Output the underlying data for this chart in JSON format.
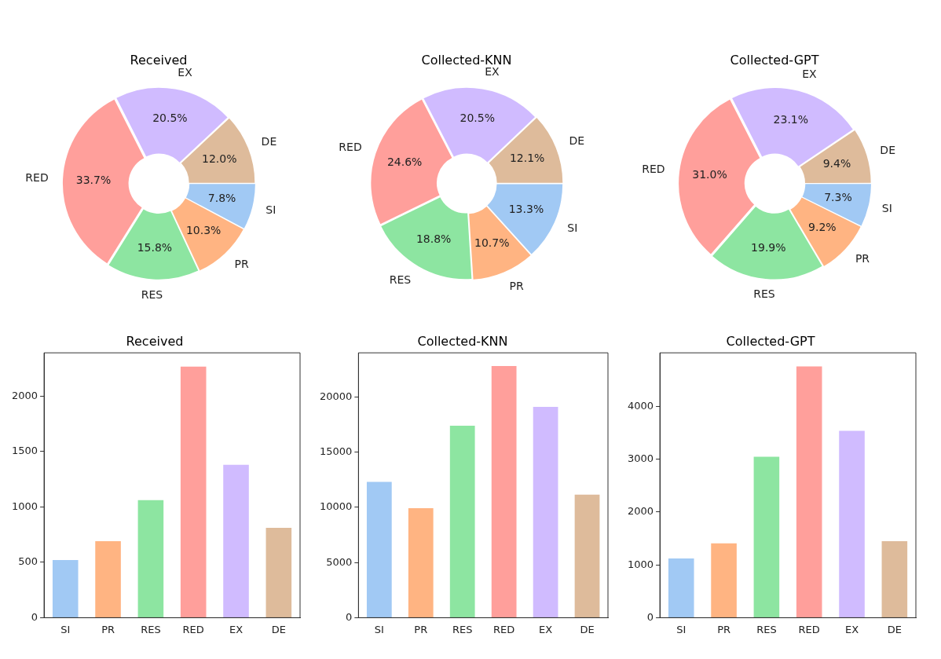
{
  "chart_data": [
    {
      "type": "donut",
      "title": "Received",
      "categories": [
        "SI",
        "PR",
        "RES",
        "RED",
        "EX",
        "DE"
      ],
      "values": [
        7.8,
        10.3,
        15.8,
        33.7,
        20.5,
        12.0
      ],
      "value_labels": [
        "7.8%",
        "10.3%",
        "15.8%",
        "33.7%",
        "20.5%",
        "12.0%"
      ],
      "colors": [
        "#a1c9f4",
        "#ffb482",
        "#8de5a1",
        "#ff9f9b",
        "#d0bbff",
        "#debb9b"
      ],
      "legend": false
    },
    {
      "type": "donut",
      "title": "Collected-KNN",
      "categories": [
        "SI",
        "PR",
        "RES",
        "RED",
        "EX",
        "DE"
      ],
      "values": [
        13.3,
        10.7,
        18.8,
        24.6,
        20.5,
        12.1
      ],
      "value_labels": [
        "13.3%",
        "10.7%",
        "18.8%",
        "24.6%",
        "20.5%",
        "12.1%"
      ],
      "colors": [
        "#a1c9f4",
        "#ffb482",
        "#8de5a1",
        "#ff9f9b",
        "#d0bbff",
        "#debb9b"
      ],
      "legend": false
    },
    {
      "type": "donut",
      "title": "Collected-GPT",
      "categories": [
        "SI",
        "PR",
        "RES",
        "RED",
        "EX",
        "DE"
      ],
      "values": [
        7.3,
        9.2,
        19.9,
        31.0,
        23.1,
        9.4
      ],
      "value_labels": [
        "7.3%",
        "9.2%",
        "19.9%",
        "31.0%",
        "23.1%",
        "9.4%"
      ],
      "colors": [
        "#a1c9f4",
        "#ffb482",
        "#8de5a1",
        "#ff9f9b",
        "#d0bbff",
        "#debb9b"
      ],
      "legend": false
    },
    {
      "type": "bar",
      "title": "Received",
      "categories": [
        "SI",
        "PR",
        "RES",
        "RED",
        "EX",
        "DE"
      ],
      "values": [
        520,
        690,
        1060,
        2265,
        1380,
        810
      ],
      "colors": [
        "#a1c9f4",
        "#ffb482",
        "#8de5a1",
        "#ff9f9b",
        "#d0bbff",
        "#debb9b"
      ],
      "ylim": [
        0,
        2390
      ],
      "yticks": [
        0,
        500,
        1000,
        1500,
        2000
      ],
      "grid": false,
      "legend": false
    },
    {
      "type": "bar",
      "title": "Collected-KNN",
      "categories": [
        "SI",
        "PR",
        "RES",
        "RED",
        "EX",
        "DE"
      ],
      "values": [
        12300,
        9930,
        17400,
        22800,
        19100,
        11150
      ],
      "colors": [
        "#a1c9f4",
        "#ffb482",
        "#8de5a1",
        "#ff9f9b",
        "#d0bbff",
        "#debb9b"
      ],
      "ylim": [
        0,
        24000
      ],
      "yticks": [
        0,
        5000,
        10000,
        15000,
        20000
      ],
      "grid": false,
      "legend": false
    },
    {
      "type": "bar",
      "title": "Collected-GPT",
      "categories": [
        "SI",
        "PR",
        "RES",
        "RED",
        "EX",
        "DE"
      ],
      "values": [
        1120,
        1410,
        3050,
        4760,
        3540,
        1450
      ],
      "colors": [
        "#a1c9f4",
        "#ffb482",
        "#8de5a1",
        "#ff9f9b",
        "#d0bbff",
        "#debb9b"
      ],
      "ylim": [
        0,
        5017
      ],
      "yticks": [
        0,
        1000,
        2000,
        3000,
        4000
      ],
      "grid": false,
      "legend": false
    }
  ]
}
